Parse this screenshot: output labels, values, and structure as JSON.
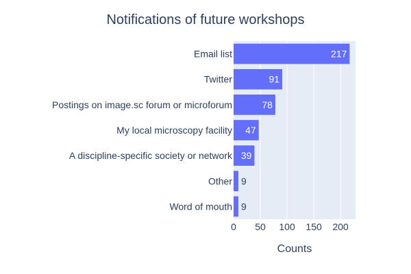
{
  "chart_data": {
    "type": "bar",
    "orientation": "horizontal",
    "title": "Notifications of future workshops",
    "xlabel": "Counts",
    "ylabel": "",
    "categories": [
      "Email list",
      "Twitter",
      "Postings on image.sc forum or microforum",
      "My local microscopy facility",
      "A discipline-specific society or network",
      "Other",
      "Word of mouth"
    ],
    "values": [
      217,
      91,
      78,
      47,
      39,
      9,
      9
    ],
    "xlim": [
      0,
      228
    ],
    "xticks": [
      0,
      50,
      100,
      150,
      200
    ],
    "grid": true,
    "legend": "none",
    "bar_color": "#636efa",
    "plot_bg": "#e5ecf6",
    "gridline_color": "#ffffff",
    "text_color": "#2a3f5f"
  }
}
